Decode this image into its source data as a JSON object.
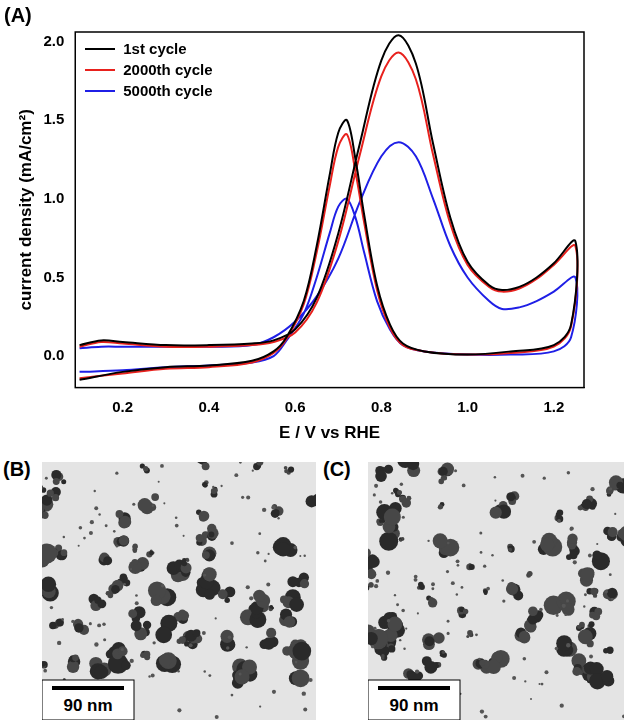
{
  "chart_data": {
    "type": "line",
    "title": "(A)",
    "x_label": "E / V vs RHE",
    "y_label": "current density (mA/cm²)",
    "x": [
      0.1,
      0.15,
      0.2,
      0.3,
      0.4,
      0.5,
      0.55,
      0.6,
      0.65,
      0.7,
      0.75,
      0.8,
      0.84,
      0.88,
      0.92,
      0.96,
      1.0,
      1.05,
      1.08,
      1.12,
      1.16,
      1.2,
      1.25,
      1.24,
      1.2,
      1.1,
      1.0,
      0.9,
      0.85,
      0.82,
      0.79,
      0.76,
      0.74,
      0.72,
      0.7,
      0.68,
      0.65,
      0.62,
      0.58,
      0.55,
      0.5,
      0.4,
      0.3,
      0.2,
      0.1
    ],
    "series": [
      {
        "name": "1st cycle",
        "color": "#000000",
        "values": [
          0.07,
          0.1,
          0.09,
          0.07,
          0.07,
          0.08,
          0.1,
          0.17,
          0.37,
          0.78,
          1.35,
          1.88,
          2.04,
          1.86,
          1.35,
          0.88,
          0.6,
          0.45,
          0.42,
          0.44,
          0.5,
          0.59,
          0.73,
          0.2,
          0.07,
          0.03,
          0.01,
          0.03,
          0.08,
          0.2,
          0.45,
          0.9,
          1.25,
          1.5,
          1.42,
          1.15,
          0.7,
          0.35,
          0.12,
          0.03,
          -0.03,
          -0.06,
          -0.07,
          -0.1,
          -0.15
        ]
      },
      {
        "name": "2000th cycle",
        "color": "#e8211d",
        "values": [
          0.06,
          0.09,
          0.08,
          0.06,
          0.06,
          0.07,
          0.09,
          0.15,
          0.34,
          0.73,
          1.28,
          1.78,
          1.93,
          1.76,
          1.28,
          0.84,
          0.58,
          0.44,
          0.41,
          0.43,
          0.49,
          0.58,
          0.7,
          0.19,
          0.06,
          0.02,
          0.01,
          0.03,
          0.07,
          0.18,
          0.42,
          0.85,
          1.17,
          1.41,
          1.33,
          1.08,
          0.66,
          0.33,
          0.11,
          0.02,
          -0.04,
          -0.07,
          -0.08,
          -0.11,
          -0.14
        ]
      },
      {
        "name": "5000th cycle",
        "color": "#1f1fe6",
        "values": [
          0.05,
          0.06,
          0.06,
          0.06,
          0.06,
          0.07,
          0.12,
          0.22,
          0.38,
          0.62,
          0.98,
          1.27,
          1.36,
          1.27,
          1.0,
          0.7,
          0.5,
          0.35,
          0.3,
          0.31,
          0.35,
          0.41,
          0.5,
          0.12,
          0.03,
          0.01,
          0.01,
          0.03,
          0.07,
          0.17,
          0.35,
          0.66,
          0.88,
          1.0,
          0.95,
          0.78,
          0.5,
          0.27,
          0.1,
          0.0,
          -0.04,
          -0.06,
          -0.07,
          -0.09,
          -0.1
        ]
      }
    ],
    "xlim": [
      0.09,
      1.27
    ],
    "xticks": [
      0.2,
      0.4,
      0.6,
      0.8,
      {
        "value": 1,
        "label": "1.0"
      },
      1.2
    ],
    "ylim": [
      -0.2,
      2.06
    ],
    "yticks": [
      {
        "value": 0,
        "label": "0.0"
      },
      0.5,
      {
        "value": 1,
        "label": "1.0"
      },
      1.5,
      {
        "value": 2,
        "label": "2.0"
      }
    ],
    "grid": false,
    "legend": "upper left"
  },
  "images": [
    {
      "label": "(B)",
      "scale_bar": "90 nm"
    },
    {
      "label": "(C)",
      "scale_bar": "90 nm"
    }
  ]
}
